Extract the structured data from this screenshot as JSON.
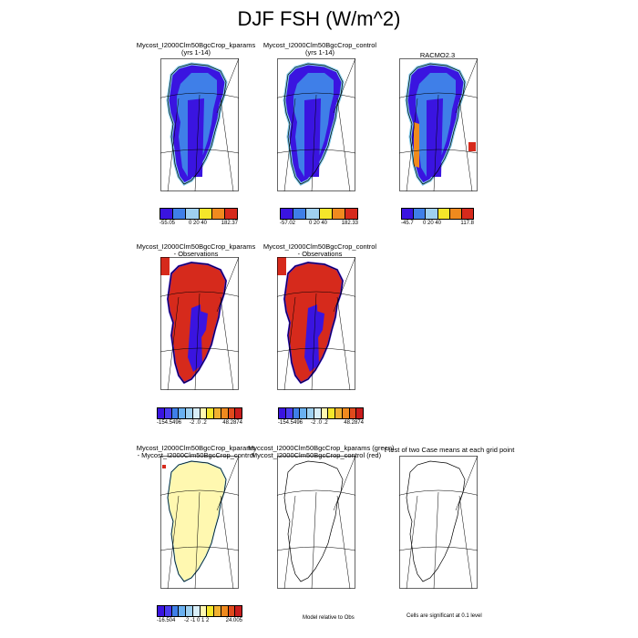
{
  "title": "DJF FSH (W/m^2)",
  "panels": {
    "p1": {
      "line1": "Mycost_I2000Clm50BgcCrop_kparams",
      "line2": "(yrs 1-14)"
    },
    "p2": {
      "line1": "Mycost_I2000Clm50BgcCrop_control",
      "line2": "(yrs 1-14)"
    },
    "p3": {
      "line1": "RACMO2.3"
    },
    "p4": {
      "line1": "Mycost_I2000Clm50BgcCrop_kparams",
      "line2": "- Observations"
    },
    "p5": {
      "line1": "Mycost_I2000Clm50BgcCrop_control",
      "line2": "- Observations"
    },
    "p6": {
      "line1": "Mycost_I2000Clm50BgcCrop_kparams",
      "line2": "- Mycost_I2000Clm50BgcCrop_control"
    },
    "p7": {
      "line1": "Myccost_I2000Clm50BgcCrop_kparams (green)",
      "line2": "Mycost_I2000Clm50BgcCrop_control (red)"
    },
    "p8": {
      "line1": "t-test of two Case means at each grid point"
    }
  },
  "colorbars": {
    "cb1": {
      "min": "-55.05",
      "mid": "0  20  40",
      "max": "182.37",
      "colors": [
        "#3a14e0",
        "#3f7fe8",
        "#9fd0f0",
        "#f5e62a",
        "#f08a1e",
        "#d62a1c"
      ]
    },
    "cb2": {
      "min": "-57.02",
      "mid": "0  20  40",
      "max": "182.33",
      "colors": [
        "#3a14e0",
        "#3f7fe8",
        "#9fd0f0",
        "#f5e62a",
        "#f08a1e",
        "#d62a1c"
      ]
    },
    "cb3": {
      "min": "-45.7",
      "mid": "0  20  40",
      "max": "117.8",
      "colors": [
        "#3a14e0",
        "#3f7fe8",
        "#9fd0f0",
        "#f5e62a",
        "#f08a1e",
        "#d62a1c"
      ]
    },
    "cb4": {
      "min": "-154.5496",
      "mid": "-2  .0  .2",
      "max": "48.2874",
      "colors": [
        "#3a14e0",
        "#4a3cf0",
        "#3f7fe8",
        "#6ab0f0",
        "#9fd0f0",
        "#d8eef8",
        "#fff8b0",
        "#f5e62a",
        "#f0b030",
        "#f08a1e",
        "#e04a1c",
        "#c81c1c"
      ]
    },
    "cb5": {
      "min": "-154.5496",
      "mid": "-2  .0  .2",
      "max": "48.2874",
      "colors": [
        "#3a14e0",
        "#4a3cf0",
        "#3f7fe8",
        "#6ab0f0",
        "#9fd0f0",
        "#d8eef8",
        "#fff8b0",
        "#f5e62a",
        "#f0b030",
        "#f08a1e",
        "#e04a1c",
        "#c81c1c"
      ]
    },
    "cb6": {
      "min": "-16.504",
      "mid": "-2  -1  0  1  2",
      "max": "24.005",
      "colors": [
        "#3a14e0",
        "#4a3cf0",
        "#3f7fe8",
        "#6ab0f0",
        "#9fd0f0",
        "#d8eef8",
        "#fff8b0",
        "#f5e62a",
        "#f0b030",
        "#f08a1e",
        "#e04a1c",
        "#c81c1c"
      ]
    }
  },
  "notes": {
    "relative": "Model relative to Obs",
    "significant": "Cells are significant at 0.1 level"
  },
  "colors": {
    "blue": "#3a14e0",
    "red": "#d62a1c",
    "yellow": "#fff8b0",
    "lightblue": "#7fc8e8",
    "orange": "#f08a1e"
  }
}
